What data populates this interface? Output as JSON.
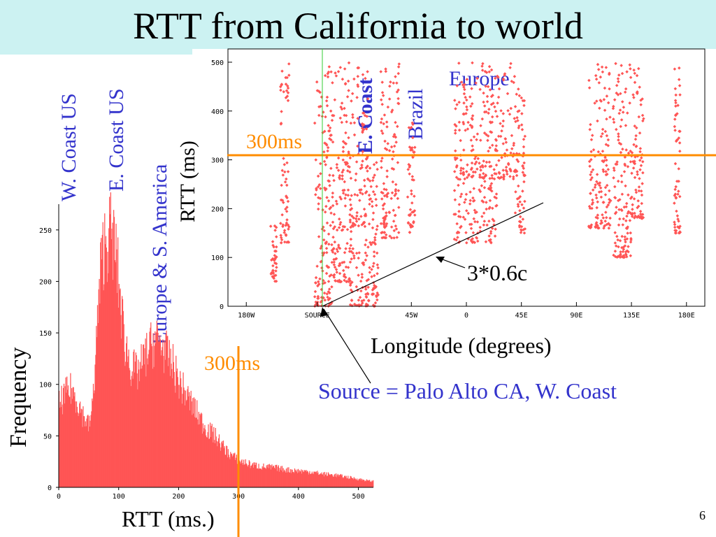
{
  "slide": {
    "title": "RTT from California to world",
    "page_number": "6",
    "annotations": {
      "w_coast": "W. Coast US",
      "e_coast": "E. Coast US",
      "europe_sa": "Europe & S. America",
      "e_coast_scatter": "E. Coast",
      "brazil": "Brazil",
      "europe": "Europe",
      "ms300_scatter": "300ms",
      "ms300_hist": "300ms",
      "fiber": "3*0.6c",
      "source": "Source = Palo Alto CA, W. Coast"
    },
    "colors": {
      "data": "#ff5555",
      "threshold": "#ff8c00",
      "annotation": "#3333cc",
      "title_band": "#ccf2f2"
    }
  },
  "chart_data": [
    {
      "type": "scatter",
      "xlabel": "Longitude (degrees)",
      "ylabel": "RTT (ms)",
      "xlim": [
        -195,
        195
      ],
      "ylim": [
        0,
        520
      ],
      "xticks": [
        {
          "v": -180,
          "label": "180W"
        },
        {
          "v": -122,
          "label": "SOURCE"
        },
        {
          "v": -45,
          "label": "45W"
        },
        {
          "v": 0,
          "label": "0"
        },
        {
          "v": 45,
          "label": "45E"
        },
        {
          "v": 90,
          "label": "90E"
        },
        {
          "v": 135,
          "label": "135E"
        },
        {
          "v": 180,
          "label": "180E"
        }
      ],
      "yticks": [
        0,
        100,
        200,
        300,
        400,
        500
      ],
      "threshold_ms": 300,
      "source_longitude": -122,
      "clusters": [
        {
          "lon": [
            -160,
            -155
          ],
          "rtt": [
            50,
            180
          ]
        },
        {
          "lon": [
            -152,
            -145
          ],
          "rtt": [
            130,
            500
          ]
        },
        {
          "lon": [
            -124,
            -110
          ],
          "rtt": [
            0,
            500
          ]
        },
        {
          "lon": [
            -110,
            -95
          ],
          "rtt": [
            50,
            500
          ]
        },
        {
          "lon": [
            -95,
            -80
          ],
          "rtt": [
            0,
            500
          ]
        },
        {
          "lon": [
            -80,
            -72
          ],
          "rtt": [
            0,
            300
          ]
        },
        {
          "lon": [
            -70,
            -55
          ],
          "rtt": [
            140,
            500
          ]
        },
        {
          "lon": [
            -48,
            -42
          ],
          "rtt": [
            150,
            380
          ]
        },
        {
          "lon": [
            -10,
            25
          ],
          "rtt": [
            130,
            260
          ]
        },
        {
          "lon": [
            -10,
            40
          ],
          "rtt": [
            260,
            500
          ]
        },
        {
          "lon": [
            40,
            48
          ],
          "rtt": [
            150,
            450
          ]
        },
        {
          "lon": [
            100,
            118
          ],
          "rtt": [
            160,
            500
          ]
        },
        {
          "lon": [
            120,
            135
          ],
          "rtt": [
            100,
            500
          ]
        },
        {
          "lon": [
            135,
            145
          ],
          "rtt": [
            180,
            500
          ]
        },
        {
          "lon": [
            170,
            175
          ],
          "rtt": [
            150,
            500
          ]
        }
      ],
      "line_fit": {
        "label": "3*0.6c",
        "from": [
          -122,
          0
        ],
        "to": [
          62,
          205
        ]
      }
    },
    {
      "type": "bar",
      "xlabel": "RTT (ms.)",
      "ylabel": "Frequency",
      "xlim": [
        0,
        525
      ],
      "ylim": [
        0,
        275
      ],
      "xticks": [
        0,
        100,
        200,
        300,
        400,
        500
      ],
      "yticks": [
        0,
        50,
        100,
        150,
        200,
        250
      ],
      "threshold_ms": 300,
      "bin_width_ms": 1,
      "envelope": [
        [
          0,
          80
        ],
        [
          10,
          90
        ],
        [
          20,
          95
        ],
        [
          30,
          85
        ],
        [
          40,
          70
        ],
        [
          50,
          60
        ],
        [
          55,
          75
        ],
        [
          60,
          120
        ],
        [
          65,
          170
        ],
        [
          70,
          215
        ],
        [
          75,
          235
        ],
        [
          80,
          242
        ],
        [
          85,
          248
        ],
        [
          90,
          240
        ],
        [
          95,
          225
        ],
        [
          100,
          195
        ],
        [
          105,
          165
        ],
        [
          110,
          140
        ],
        [
          120,
          118
        ],
        [
          130,
          110
        ],
        [
          140,
          122
        ],
        [
          150,
          135
        ],
        [
          160,
          143
        ],
        [
          170,
          140
        ],
        [
          180,
          128
        ],
        [
          190,
          118
        ],
        [
          200,
          102
        ],
        [
          210,
          92
        ],
        [
          220,
          82
        ],
        [
          230,
          72
        ],
        [
          240,
          62
        ],
        [
          250,
          55
        ],
        [
          260,
          50
        ],
        [
          270,
          42
        ],
        [
          280,
          35
        ],
        [
          290,
          30
        ],
        [
          300,
          26
        ],
        [
          320,
          22
        ],
        [
          340,
          20
        ],
        [
          360,
          19
        ],
        [
          380,
          17
        ],
        [
          400,
          16
        ],
        [
          420,
          15
        ],
        [
          440,
          13
        ],
        [
          460,
          12
        ],
        [
          480,
          10
        ],
        [
          500,
          8
        ],
        [
          520,
          6
        ]
      ]
    }
  ]
}
